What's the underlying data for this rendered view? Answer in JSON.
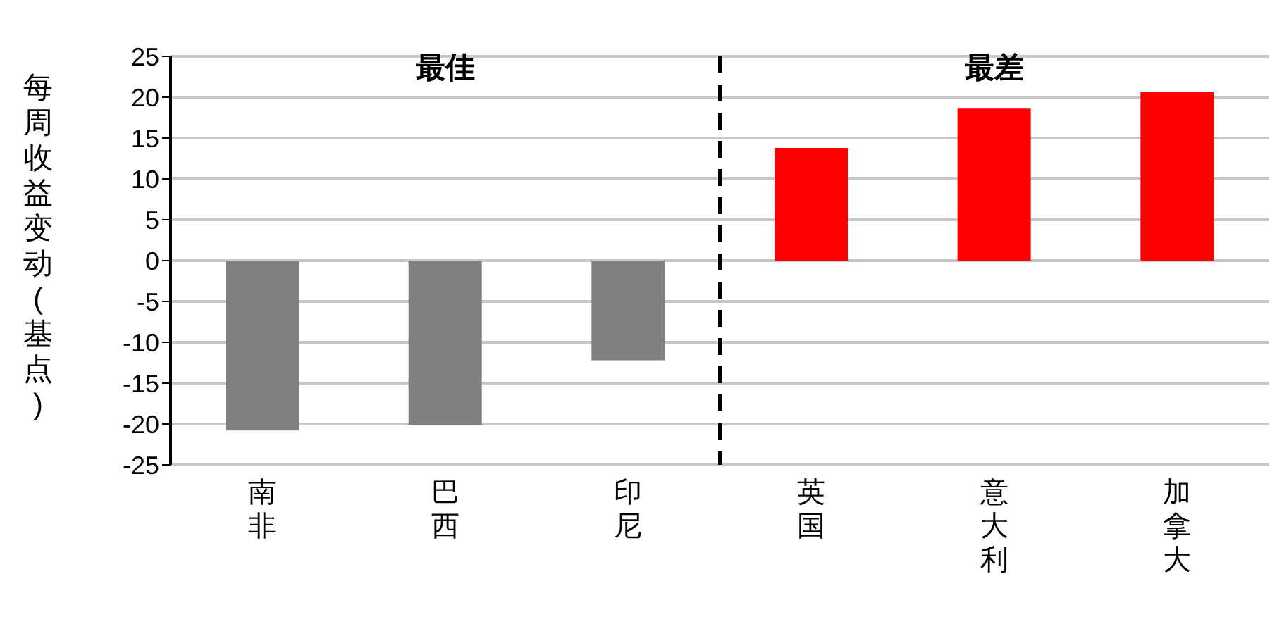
{
  "chart_data": {
    "type": "bar",
    "ylabel": "每周收益变动(基点)",
    "categories": [
      "南非",
      "巴西",
      "印尼",
      "英国",
      "意大利",
      "加拿大"
    ],
    "values": [
      -20.8,
      -20.1,
      -12.2,
      13.8,
      18.6,
      20.7
    ],
    "colors": [
      "#808080",
      "#808080",
      "#808080",
      "#ff0000",
      "#ff0000",
      "#ff0000"
    ],
    "ylim": [
      -25,
      25
    ],
    "yticks": [
      -25,
      -20,
      -15,
      -10,
      -5,
      0,
      5,
      10,
      15,
      20,
      25
    ],
    "grid": "y",
    "annotations": [
      "最佳",
      "最差"
    ]
  }
}
